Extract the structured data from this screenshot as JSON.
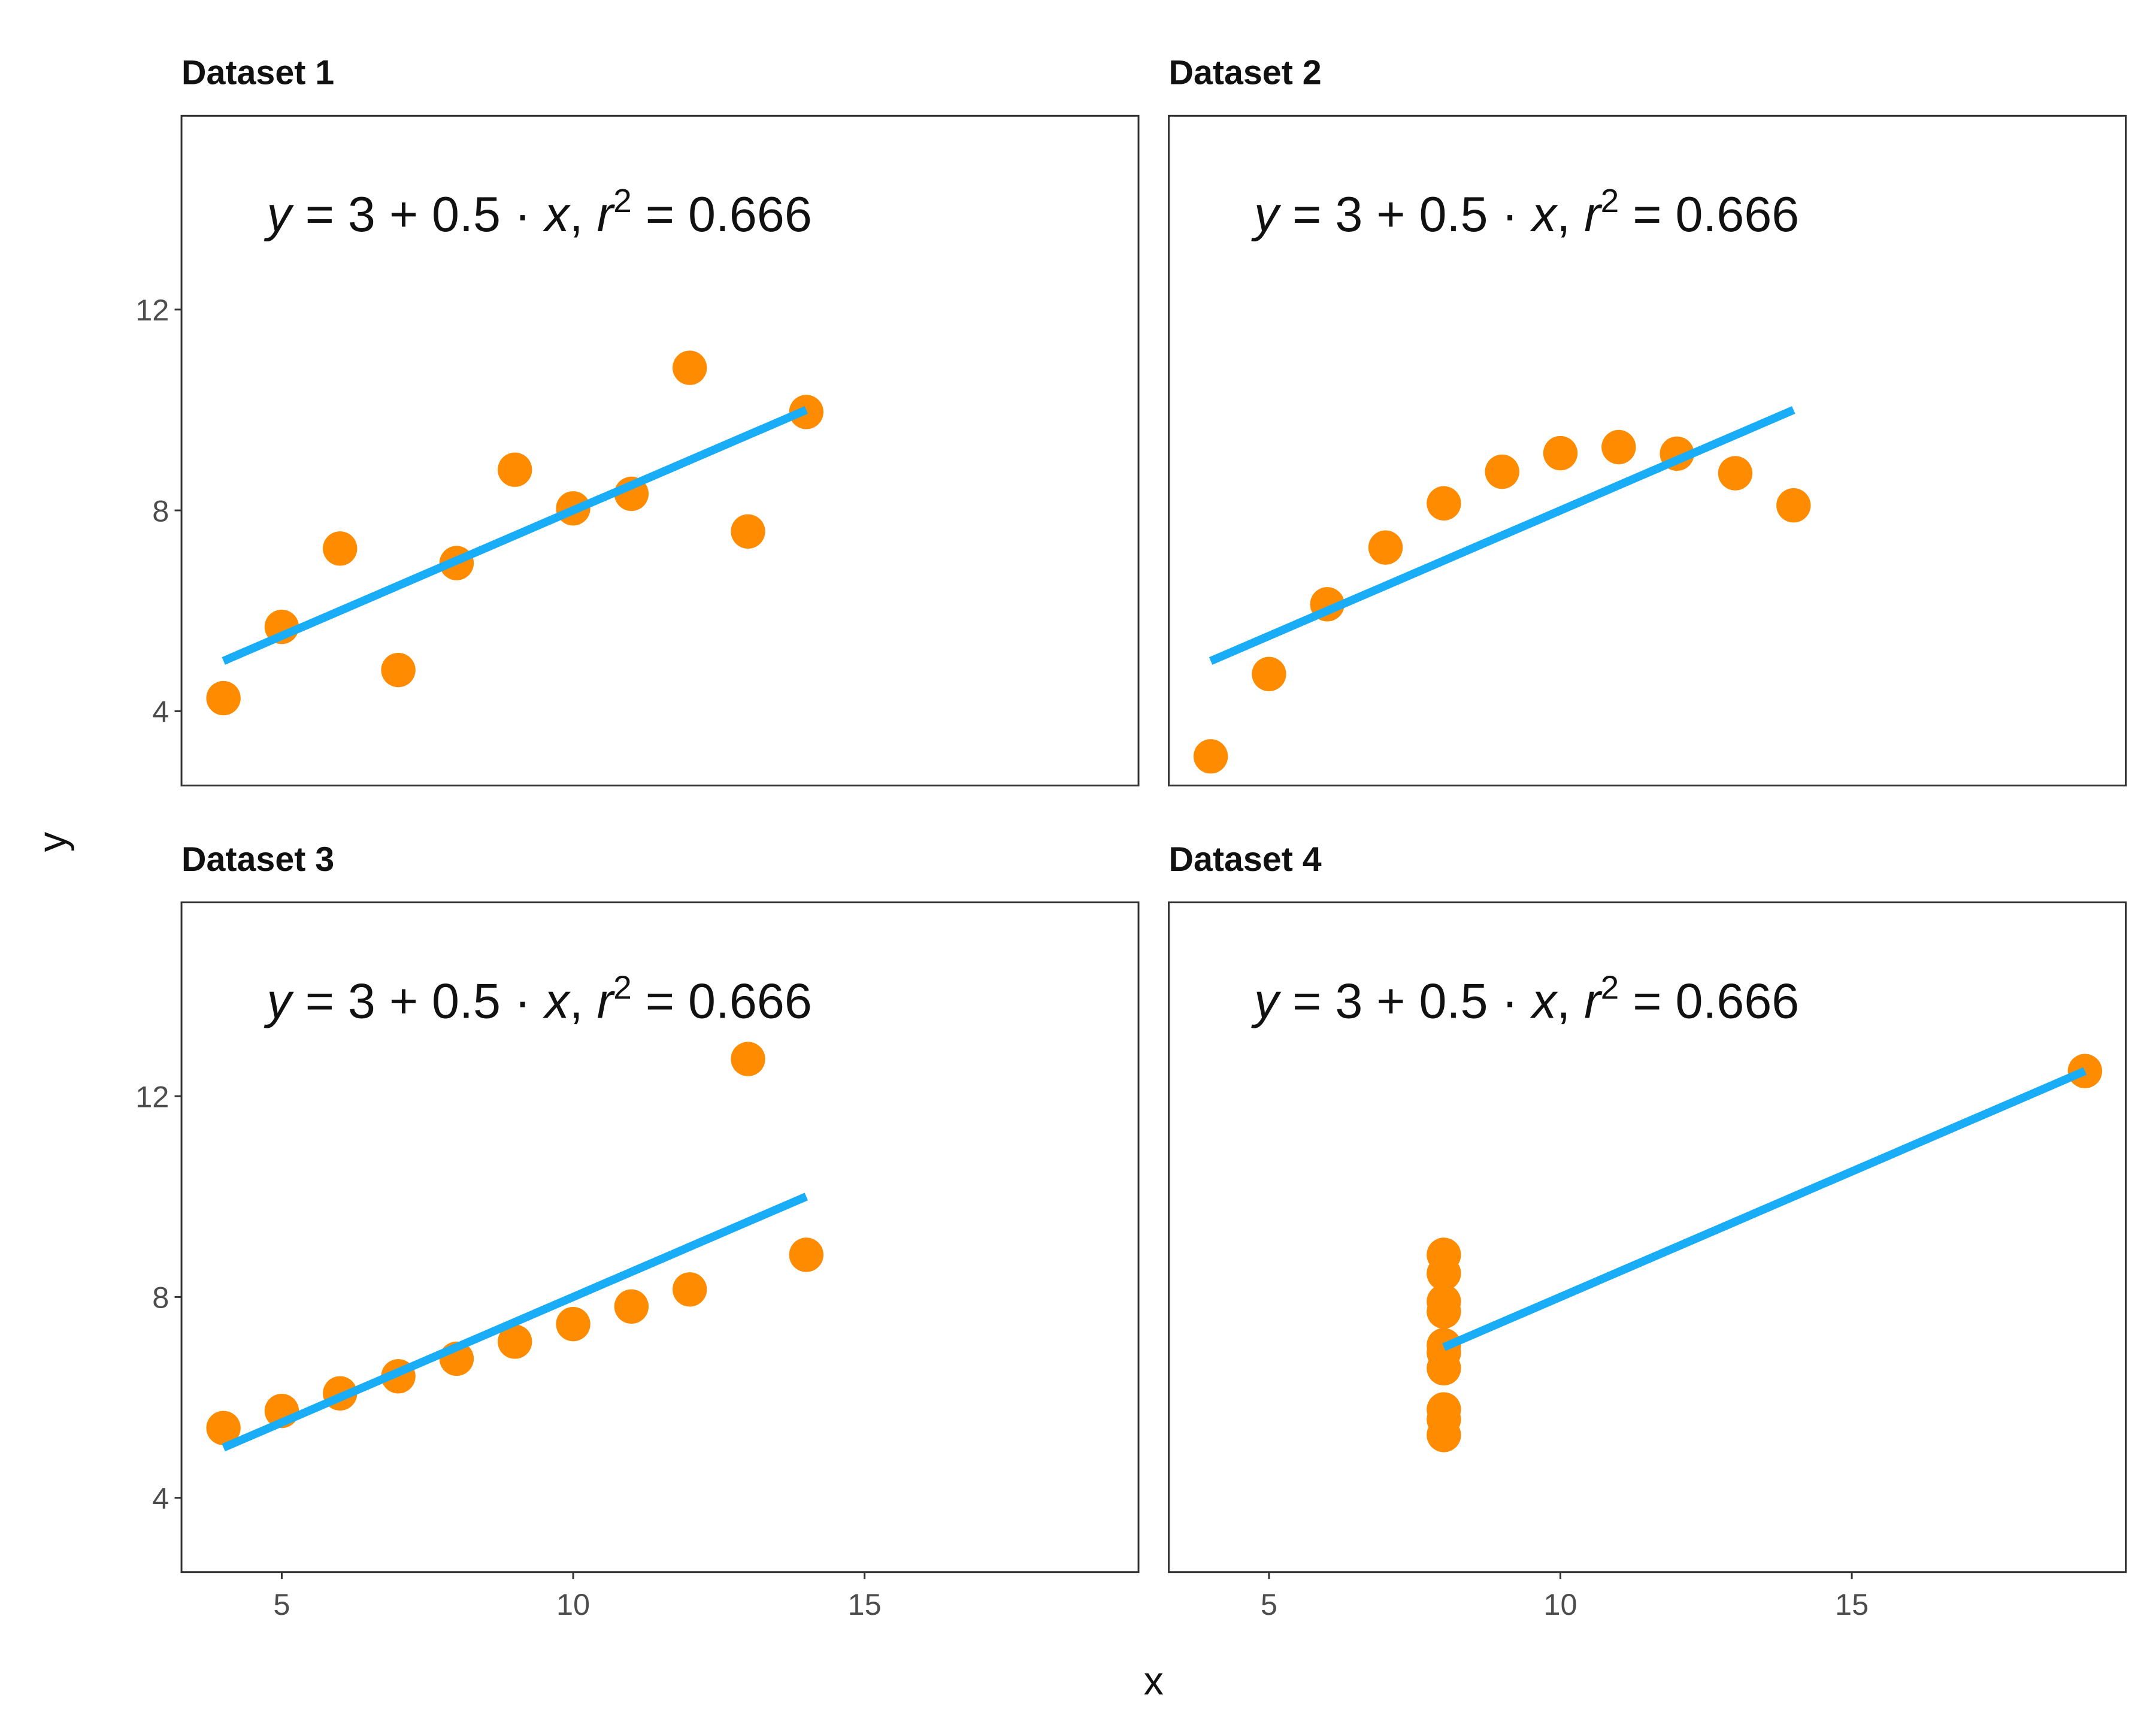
{
  "chart_data": {
    "type": "scatter",
    "xlabel": "x",
    "ylabel": "y",
    "xlim": [
      3.28,
      19.7
    ],
    "ylim": [
      2.52,
      15.86
    ],
    "x_ticks": [
      5,
      10,
      15
    ],
    "y_ticks": [
      4,
      8,
      12
    ],
    "grid": false,
    "point_color": "#FF8C00",
    "line_color": "#1AADF7",
    "annotation": {
      "y": "y",
      "eq1": " = 3 + 0.5 · ",
      "x": "x",
      "comma": ",  ",
      "r": "r",
      "sup": "2",
      "eq2": " = 0.666"
    },
    "panels": [
      {
        "title": "Dataset 1",
        "x": [
          10,
          8,
          13,
          9,
          11,
          14,
          6,
          4,
          12,
          7,
          5
        ],
        "y": [
          8.04,
          6.95,
          7.58,
          8.81,
          8.33,
          9.96,
          7.24,
          4.26,
          10.84,
          4.82,
          5.68
        ],
        "fit": {
          "intercept": 3,
          "slope": 0.5,
          "x_range": [
            4,
            14
          ]
        }
      },
      {
        "title": "Dataset 2",
        "x": [
          10,
          8,
          13,
          9,
          11,
          14,
          6,
          4,
          12,
          7,
          5
        ],
        "y": [
          9.14,
          8.14,
          8.74,
          8.77,
          9.26,
          8.1,
          6.13,
          3.1,
          9.13,
          7.26,
          4.74
        ],
        "fit": {
          "intercept": 3,
          "slope": 0.5,
          "x_range": [
            4,
            14
          ]
        }
      },
      {
        "title": "Dataset 3",
        "x": [
          10,
          8,
          13,
          9,
          11,
          14,
          6,
          4,
          12,
          7,
          5
        ],
        "y": [
          7.46,
          6.77,
          12.74,
          7.11,
          7.81,
          8.84,
          6.08,
          5.39,
          8.15,
          6.42,
          5.73
        ],
        "fit": {
          "intercept": 3,
          "slope": 0.5,
          "x_range": [
            4,
            14
          ]
        }
      },
      {
        "title": "Dataset 4",
        "x": [
          8,
          8,
          8,
          8,
          8,
          8,
          8,
          19,
          8,
          8,
          8
        ],
        "y": [
          6.58,
          5.76,
          7.71,
          8.84,
          8.47,
          7.04,
          5.25,
          12.5,
          5.56,
          7.91,
          6.89
        ],
        "fit": {
          "intercept": 3,
          "slope": 0.5,
          "x_range": [
            8,
            19
          ]
        }
      }
    ]
  }
}
